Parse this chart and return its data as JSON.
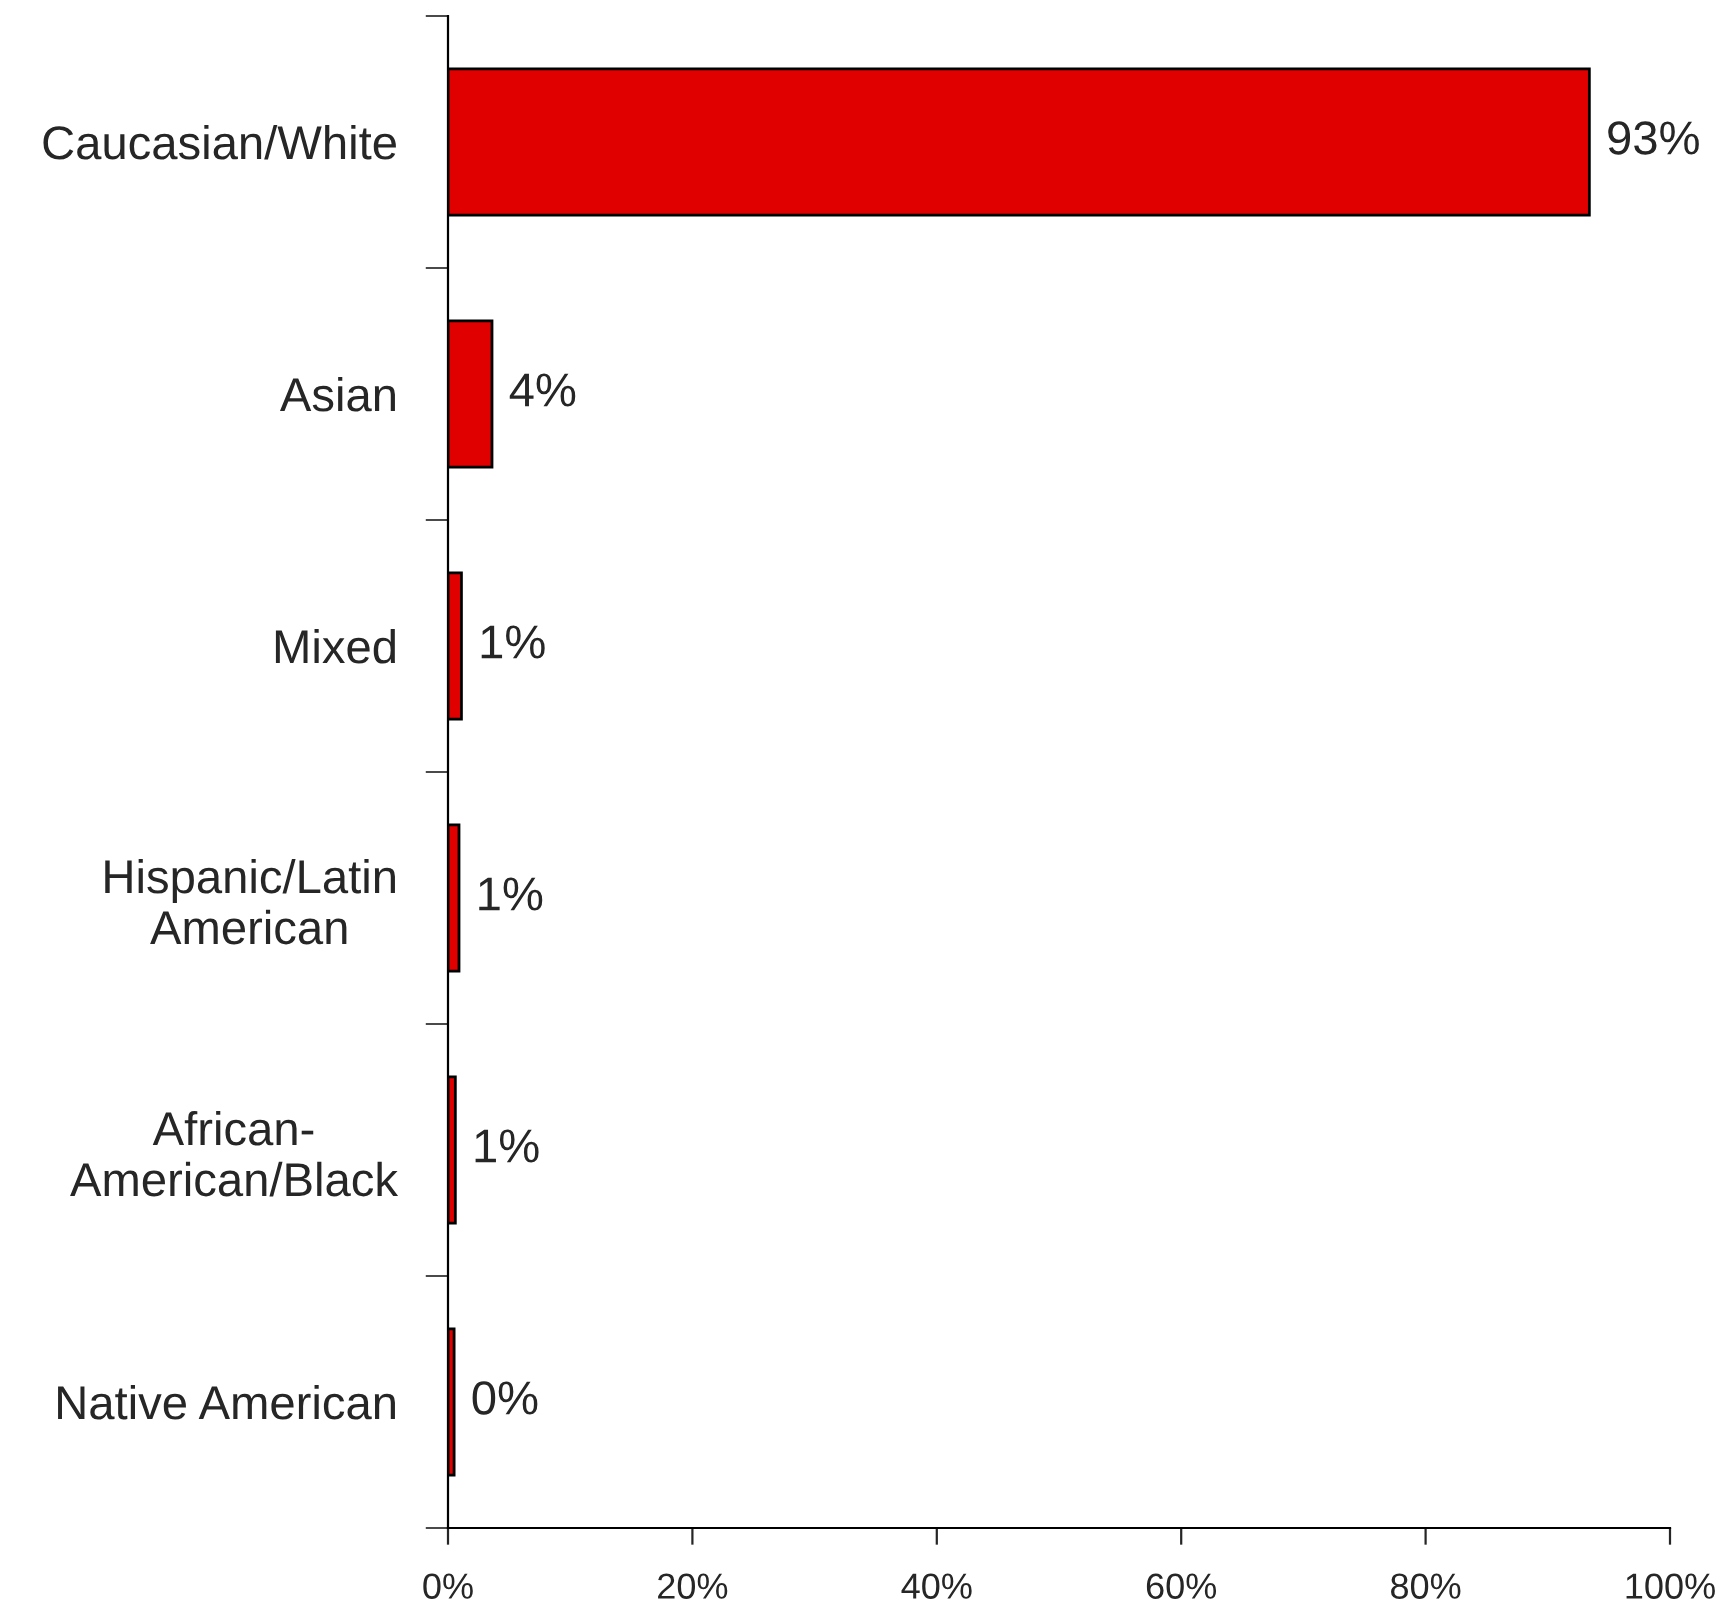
{
  "chart_data": {
    "type": "bar",
    "orientation": "horizontal",
    "categories": [
      "Caucasian/White",
      "Asian",
      "Mixed",
      "Hispanic/Latin\nAmerican",
      "African-\nAmerican/Black",
      "Native American"
    ],
    "values": [
      93.4,
      3.6,
      1.1,
      0.9,
      0.6,
      0.5
    ],
    "value_labels": [
      "93%",
      "4%",
      "1%",
      "1%",
      "1%",
      "0%"
    ],
    "color": "#e00000",
    "xlim": [
      0,
      100
    ],
    "xticks": [
      {
        "value": 0,
        "label": "0%"
      },
      {
        "value": 20,
        "label": "20%"
      },
      {
        "value": 40,
        "label": "40%"
      },
      {
        "value": 60,
        "label": "60%"
      },
      {
        "value": 80,
        "label": "80%"
      },
      {
        "value": 100,
        "label": "100%"
      }
    ],
    "grid": false,
    "legend": false
  }
}
